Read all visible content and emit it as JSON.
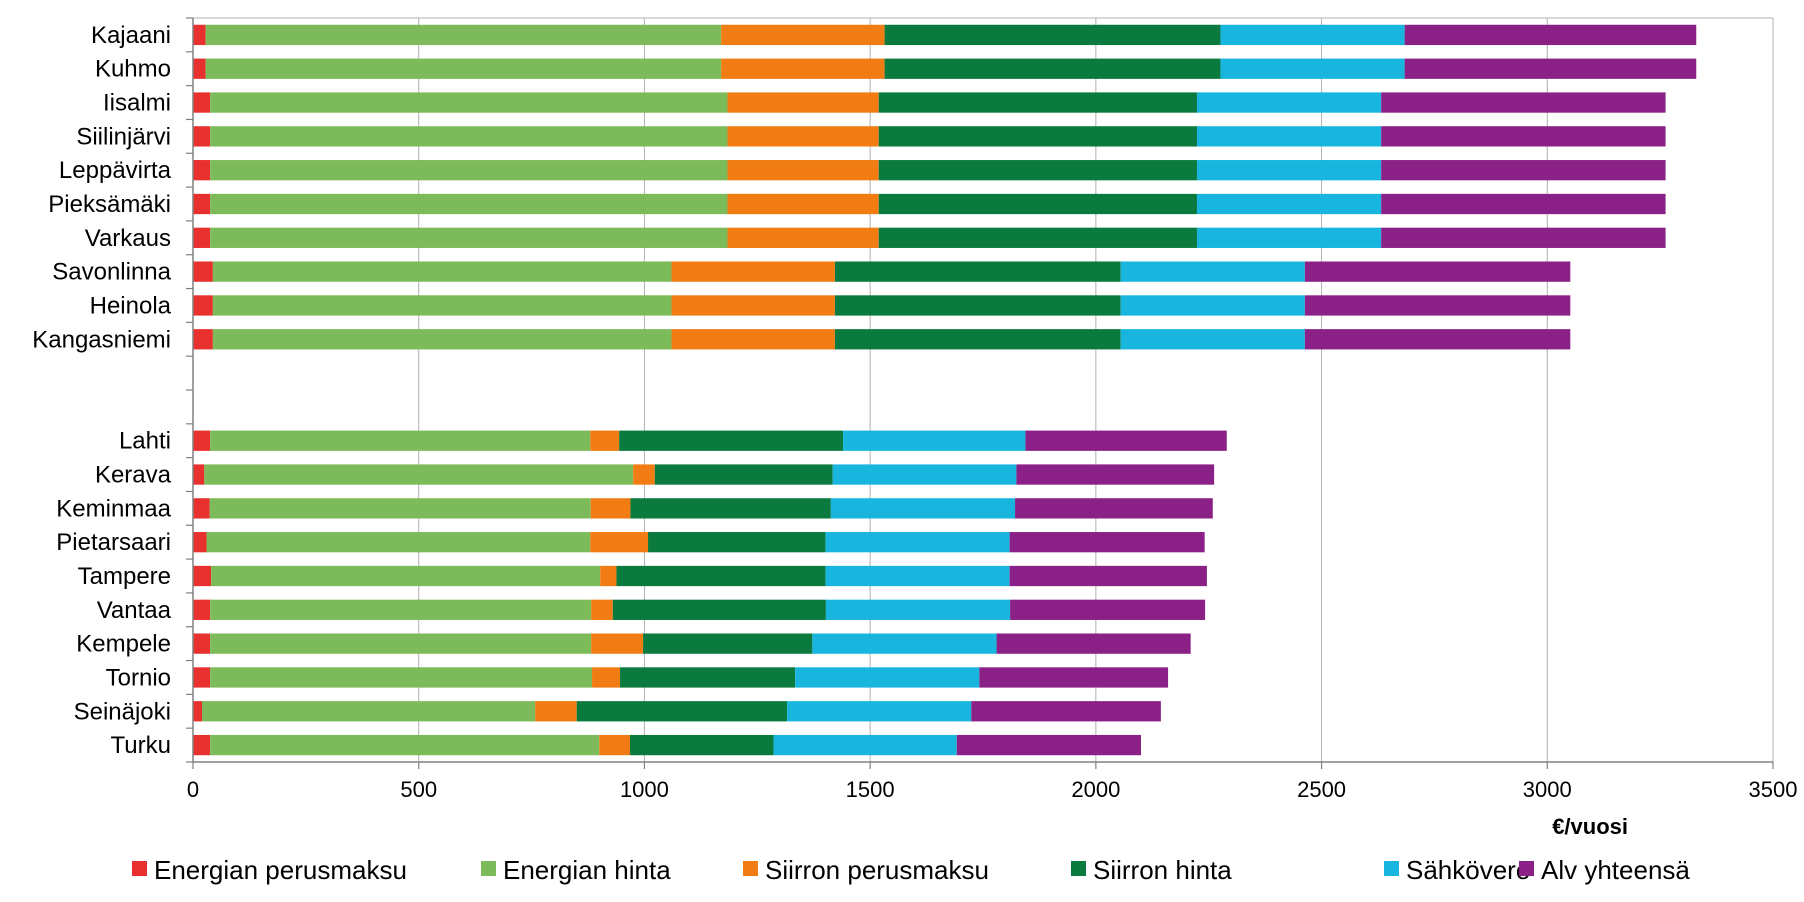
{
  "chart_data": {
    "type": "bar",
    "orientation": "horizontal",
    "stacked": true,
    "categories": [
      "Kajaani",
      "Kuhmo",
      "Iisalmi",
      "Siilinjärvi",
      "Leppävirta",
      "Pieksämäki",
      "Varkaus",
      "Savonlinna",
      "Heinola",
      "Kangasniemi",
      "",
      "",
      "Lahti",
      "Kerava",
      "Keminmaa",
      "Pietarsaari",
      "Tampere",
      "Vantaa",
      "Kempele",
      "Tornio",
      "Seinäjoki",
      "Turku"
    ],
    "series": [
      {
        "name": "Energian perusmaksu",
        "color": "#e8312f",
        "values": [
          28,
          28,
          38,
          38,
          38,
          38,
          38,
          44,
          44,
          44,
          null,
          null,
          38,
          25,
          37,
          30,
          40,
          38,
          38,
          38,
          20,
          38
        ]
      },
      {
        "name": "Energian hinta",
        "color": "#7dbb5a",
        "values": [
          1142,
          1142,
          1146,
          1146,
          1146,
          1146,
          1146,
          1016,
          1016,
          1016,
          null,
          null,
          842,
          950,
          844,
          850,
          862,
          844,
          844,
          846,
          738,
          862
        ]
      },
      {
        "name": "Siirron perusmaksu",
        "color": "#f07c13",
        "values": [
          362,
          362,
          335,
          335,
          335,
          335,
          335,
          362,
          362,
          362,
          null,
          null,
          64,
          48,
          88,
          128,
          36,
          48,
          115,
          62,
          92,
          68
        ]
      },
      {
        "name": "Siirron hinta",
        "color": "#0b7a3e",
        "values": [
          744,
          744,
          705,
          705,
          705,
          705,
          705,
          633,
          633,
          633,
          null,
          null,
          496,
          394,
          444,
          393,
          463,
          472,
          375,
          388,
          466,
          318
        ]
      },
      {
        "name": "Sähkövero",
        "color": "#18b6df",
        "values": [
          408,
          408,
          408,
          408,
          408,
          408,
          408,
          408,
          408,
          408,
          null,
          null,
          404,
          407,
          408,
          408,
          408,
          408,
          408,
          408,
          408,
          406
        ]
      },
      {
        "name": "Alv yhteensä",
        "color": "#8b2186",
        "values": [
          646,
          646,
          630,
          630,
          630,
          630,
          630,
          588,
          588,
          588,
          null,
          null,
          446,
          438,
          438,
          432,
          437,
          432,
          430,
          418,
          420,
          408
        ]
      }
    ],
    "xlabel": "€/vuosi",
    "xlim": [
      0,
      3500
    ],
    "xticks": [
      0,
      500,
      1000,
      1500,
      2000,
      2500,
      3000,
      3500
    ],
    "grid": true,
    "legend_position": "bottom"
  }
}
